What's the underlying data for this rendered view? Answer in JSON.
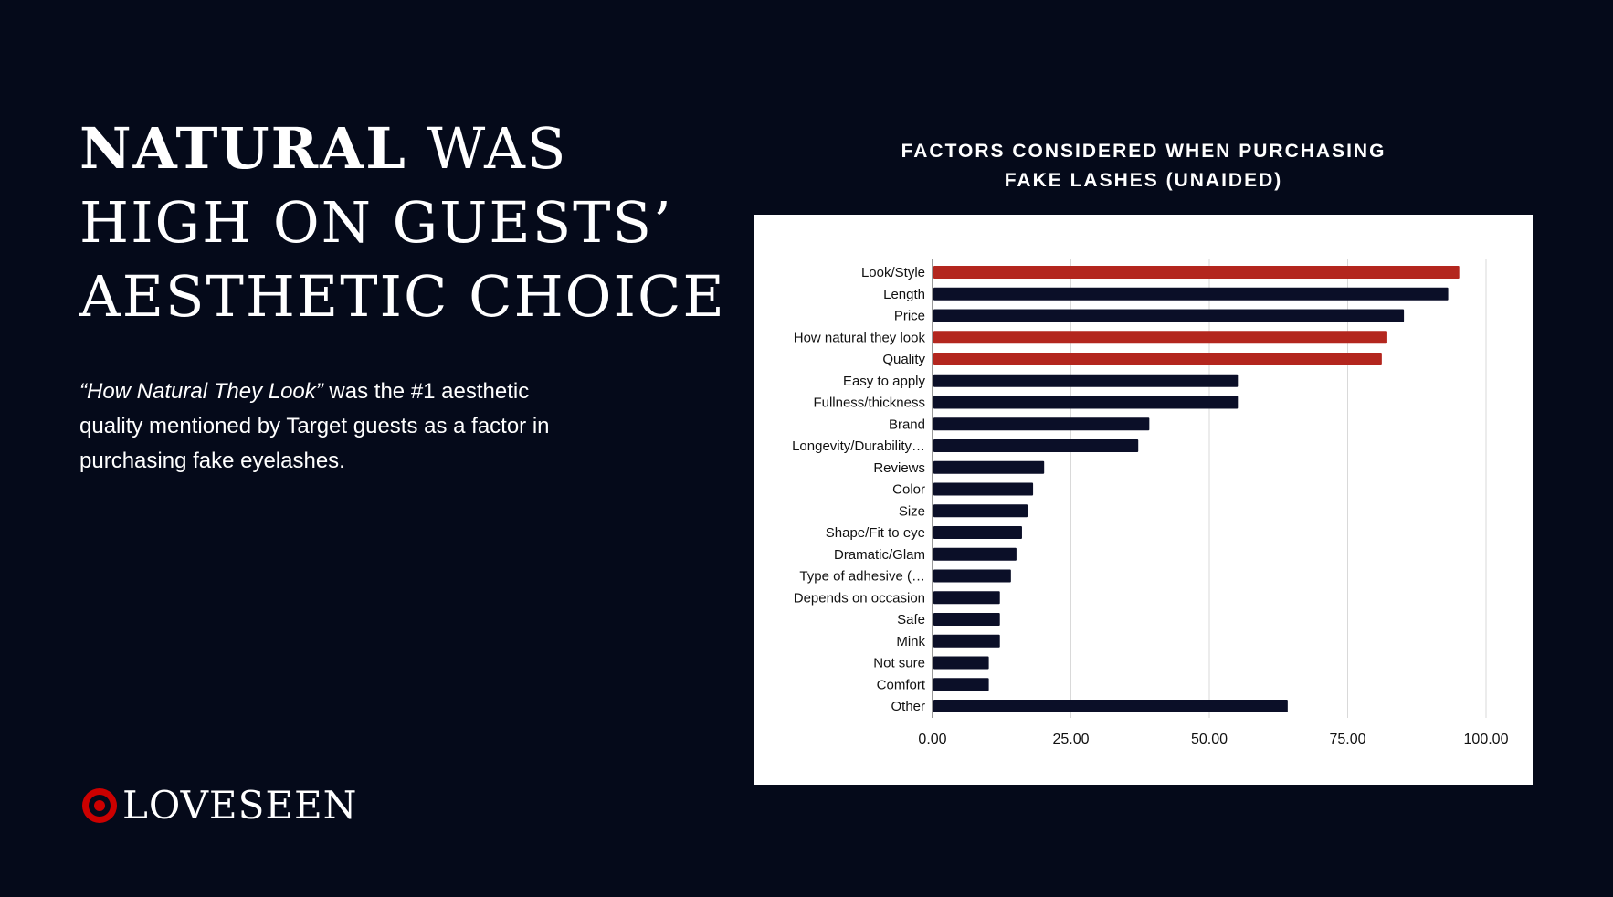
{
  "headline": {
    "bold": "Natural",
    "rest": " was high on guests’ aesthetic choice"
  },
  "body": {
    "quote": "“How Natural They Look”",
    "text": " was the #1 aesthetic quality mentioned by Target guests as a factor in purchasing fake eyelashes."
  },
  "brand": {
    "logo_text": "LOVESEEN",
    "logo_icon": "target-bullseye-icon",
    "accent_color": "#cc0000"
  },
  "chart_data": {
    "type": "bar",
    "orientation": "horizontal",
    "title": "Factors considered when purchasing fake lashes (unaided)",
    "title_lines": [
      "Factors considered when purchasing",
      "fake lashes (unaided)"
    ],
    "categories": [
      "Look/Style",
      "Length",
      "Price",
      "How natural they look",
      "Quality",
      "Easy to apply",
      "Fullness/thickness",
      "Brand",
      "Longevity/Durability…",
      "Reviews",
      "Color",
      "Size",
      "Shape/Fit to eye",
      "Dramatic/Glam",
      "Type of adhesive (…",
      "Depends on occasion",
      "Safe",
      "Mink",
      "Not sure",
      "Comfort",
      "Other"
    ],
    "values": [
      95,
      93,
      85,
      82,
      81,
      55,
      55,
      39,
      37,
      20,
      18,
      17,
      16,
      15,
      14,
      12,
      12,
      12,
      10,
      10,
      64
    ],
    "highlight": [
      true,
      false,
      false,
      true,
      true,
      false,
      false,
      false,
      false,
      false,
      false,
      false,
      false,
      false,
      false,
      false,
      false,
      false,
      false,
      false,
      false
    ],
    "xlim": [
      0,
      100
    ],
    "xticks": [
      "0.00",
      "25.00",
      "50.00",
      "75.00",
      "100.00"
    ],
    "grid": true,
    "colors": {
      "highlight": "#b3261e",
      "default": "#0b0f28",
      "grid": "#d9d9d9"
    }
  }
}
